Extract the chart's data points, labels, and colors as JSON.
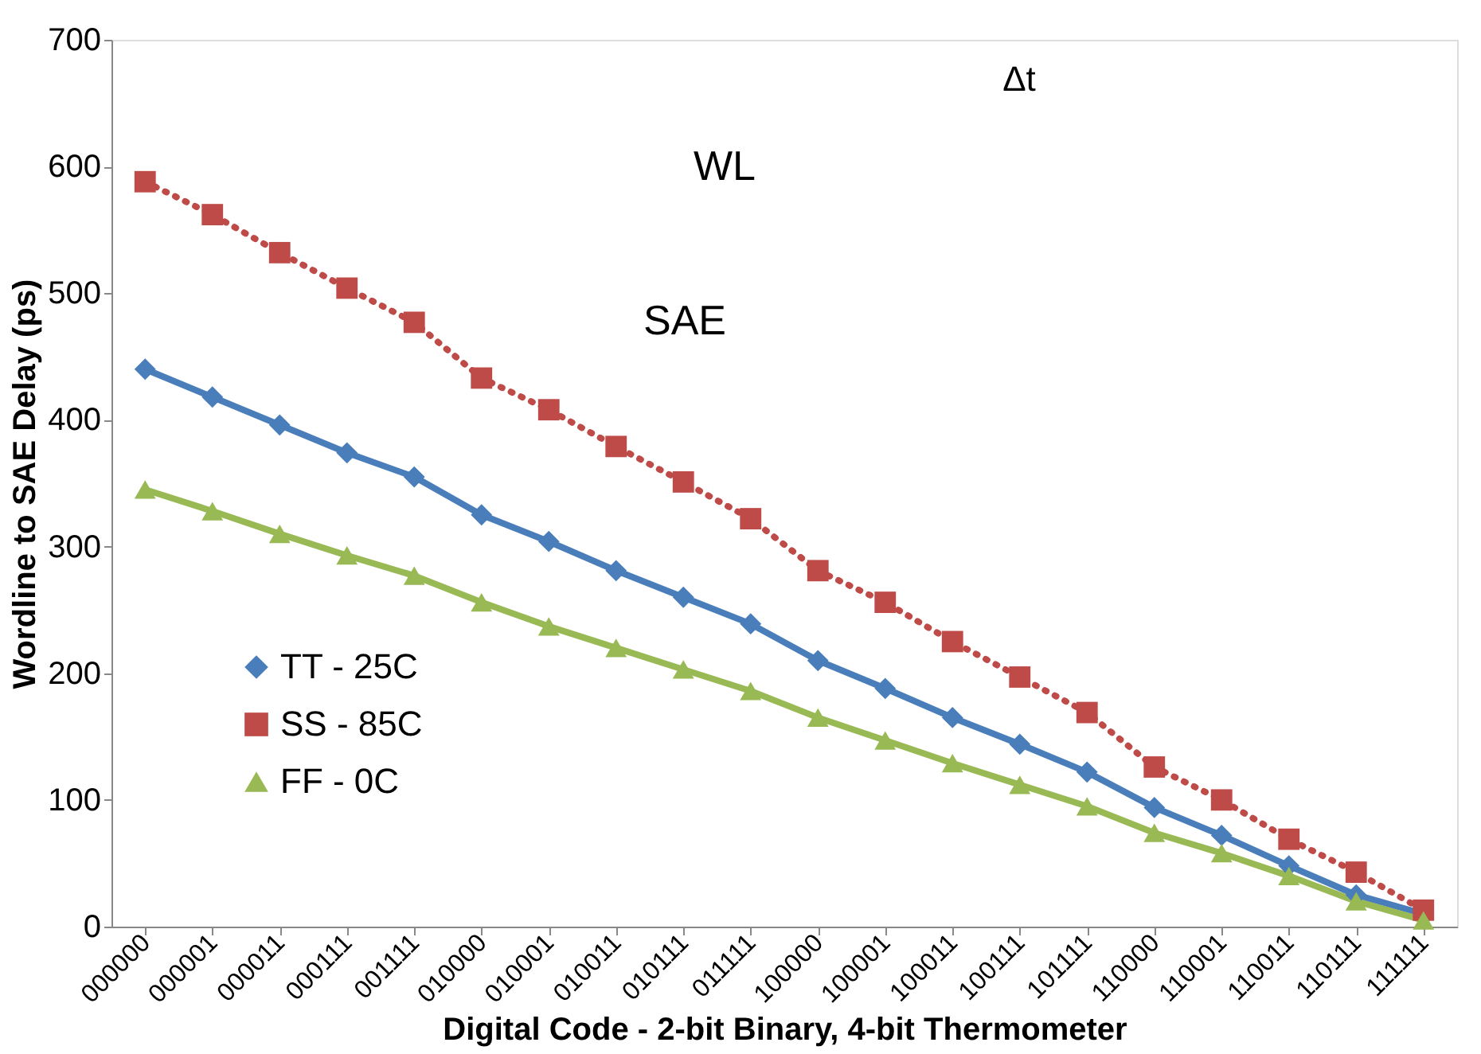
{
  "chart_data": {
    "type": "line",
    "xlabel": "Digital Code - 2-bit Binary, 4-bit Thermometer",
    "ylabel": "Wordline to SAE Delay (ps)",
    "categories": [
      "000000",
      "000001",
      "000011",
      "000111",
      "001111",
      "010000",
      "010001",
      "010011",
      "010111",
      "011111",
      "100000",
      "100001",
      "100011",
      "100111",
      "101111",
      "110000",
      "110001",
      "110011",
      "110111",
      "111111"
    ],
    "series": [
      {
        "name": "TT - 25C",
        "color": "#4a7ebb",
        "marker": "diamond",
        "line_style": "solid",
        "values": [
          440,
          418,
          396,
          374,
          355,
          325,
          304,
          281,
          260,
          239,
          210,
          188,
          165,
          144,
          122,
          94,
          72,
          48,
          25,
          10
        ]
      },
      {
        "name": "SS - 85C",
        "color": "#be4b48",
        "marker": "square",
        "line_style": "dotted",
        "values": [
          588,
          562,
          532,
          504,
          477,
          433,
          408,
          379,
          351,
          322,
          281,
          256,
          225,
          197,
          169,
          126,
          100,
          69,
          43,
          13
        ]
      },
      {
        "name": "FF - 0C",
        "color": "#98b954",
        "marker": "triangle",
        "line_style": "solid",
        "values": [
          345,
          328,
          310,
          293,
          277,
          256,
          237,
          220,
          203,
          186,
          165,
          147,
          129,
          112,
          95,
          74,
          58,
          40,
          20,
          5
        ]
      }
    ],
    "ylim": [
      0,
      700
    ],
    "yticks": [
      0,
      100,
      200,
      300,
      400,
      500,
      600,
      700
    ],
    "grid": false,
    "legend": "bottom left",
    "annotations": [
      "WL",
      "SAE",
      "Δt"
    ]
  }
}
